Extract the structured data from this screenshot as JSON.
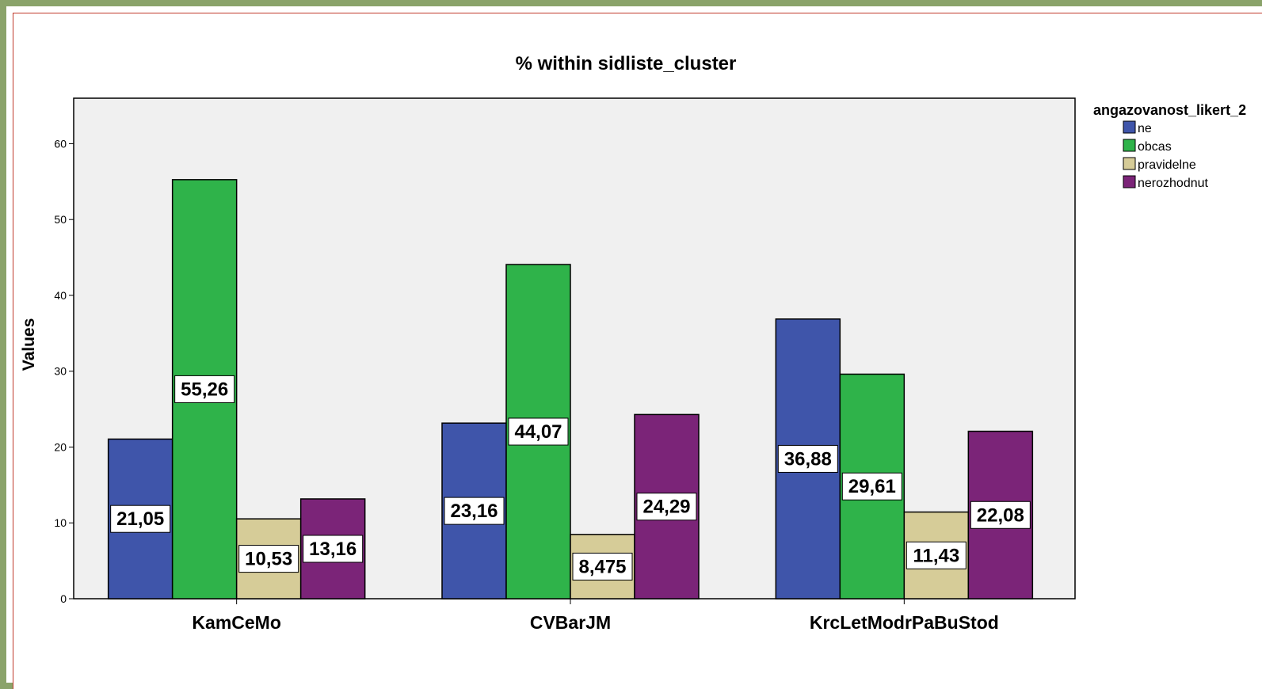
{
  "chart_data": {
    "type": "bar",
    "title": "% within sidliste_cluster",
    "ylabel": "Values",
    "xlabel": "",
    "ylim": [
      0,
      66
    ],
    "yticks": [
      0,
      10,
      20,
      30,
      40,
      50,
      60
    ],
    "categories": [
      "KamCeMo",
      "CVBarJM",
      "KrcLetModrPaBuStod"
    ],
    "legend_title": "angazovanost_likert_2",
    "legend_position": "right",
    "grid": false,
    "series": [
      {
        "name": "ne",
        "color": "#3f55aa",
        "values": [
          21.05,
          23.16,
          36.88
        ],
        "labels": [
          "21,05",
          "23,16",
          "36,88"
        ]
      },
      {
        "name": "obcas",
        "color": "#2fb34a",
        "values": [
          55.26,
          44.07,
          29.61
        ],
        "labels": [
          "55,26",
          "44,07",
          "29,61"
        ]
      },
      {
        "name": "pravidelne",
        "color": "#d6cc98",
        "values": [
          10.53,
          8.475,
          11.43
        ],
        "labels": [
          "10,53",
          "8,475",
          "11,43"
        ]
      },
      {
        "name": "nerozhodnut",
        "color": "#7b2478",
        "values": [
          13.16,
          24.29,
          22.08
        ],
        "labels": [
          "13,16",
          "24,29",
          "22,08"
        ]
      }
    ]
  }
}
